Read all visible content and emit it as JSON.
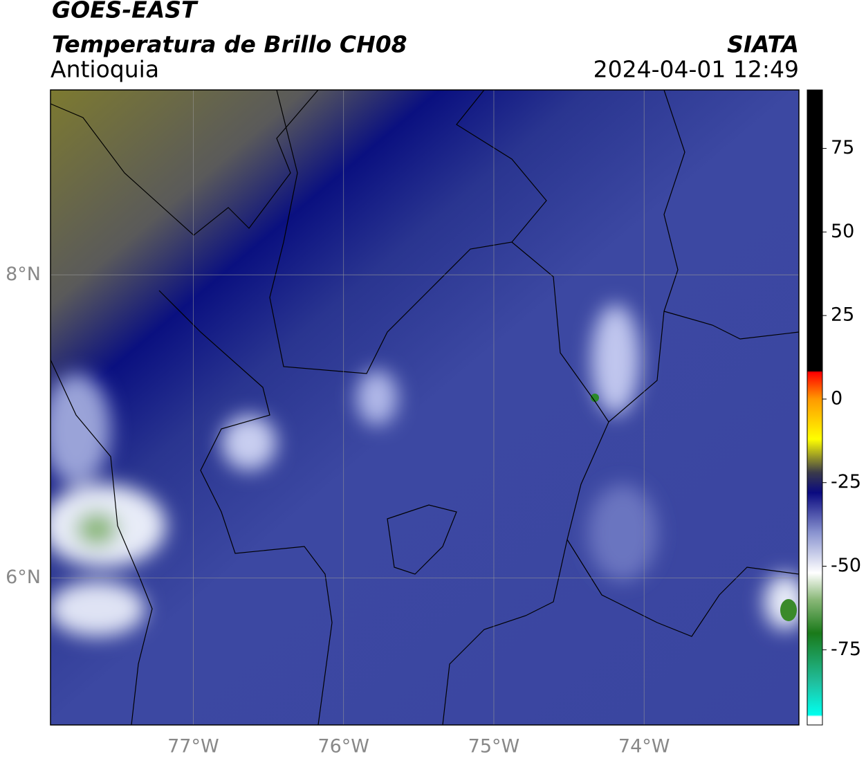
{
  "header": {
    "title": "GOES-EAST",
    "subtitle": "Temperatura de Brillo CH08",
    "region": "Antioquia",
    "source": "SIATA",
    "datetime": "2024-04-01 12:49"
  },
  "map": {
    "xlim": [
      -77.95,
      -72.97
    ],
    "ylim": [
      5.03,
      9.22
    ],
    "xticks": [
      {
        "value": -77,
        "label": "77°W"
      },
      {
        "value": -76,
        "label": "76°W"
      },
      {
        "value": -75,
        "label": "75°W"
      },
      {
        "value": -74,
        "label": "74°W"
      }
    ],
    "yticks": [
      {
        "value": 6,
        "label": "6°N"
      },
      {
        "value": 8,
        "label": "8°N"
      }
    ],
    "grid": true
  },
  "colorbar": {
    "lim": [
      -97.5,
      92.5
    ],
    "ticks": [
      75,
      50,
      25,
      0,
      -25,
      -50,
      -75
    ],
    "stops": [
      {
        "value": -97.5,
        "color": "#ffffff"
      },
      {
        "value": -95,
        "color": "#ffffff"
      },
      {
        "value": -94.5,
        "color": "#00ffee"
      },
      {
        "value": -85,
        "color": "#20c0a0"
      },
      {
        "value": -70,
        "color": "#1a7a1a"
      },
      {
        "value": -60,
        "color": "#8ab878"
      },
      {
        "value": -52,
        "color": "#ffffff"
      },
      {
        "value": -40,
        "color": "#8a94d0"
      },
      {
        "value": -28,
        "color": "#0a0a80"
      },
      {
        "value": -22,
        "color": "#3a3a4a"
      },
      {
        "value": -12,
        "color": "#ffff00"
      },
      {
        "value": 0,
        "color": "#ff9900"
      },
      {
        "value": 8,
        "color": "#ff0000"
      },
      {
        "value": 8.5,
        "color": "#000000"
      },
      {
        "value": 92.5,
        "color": "#000000"
      }
    ]
  }
}
